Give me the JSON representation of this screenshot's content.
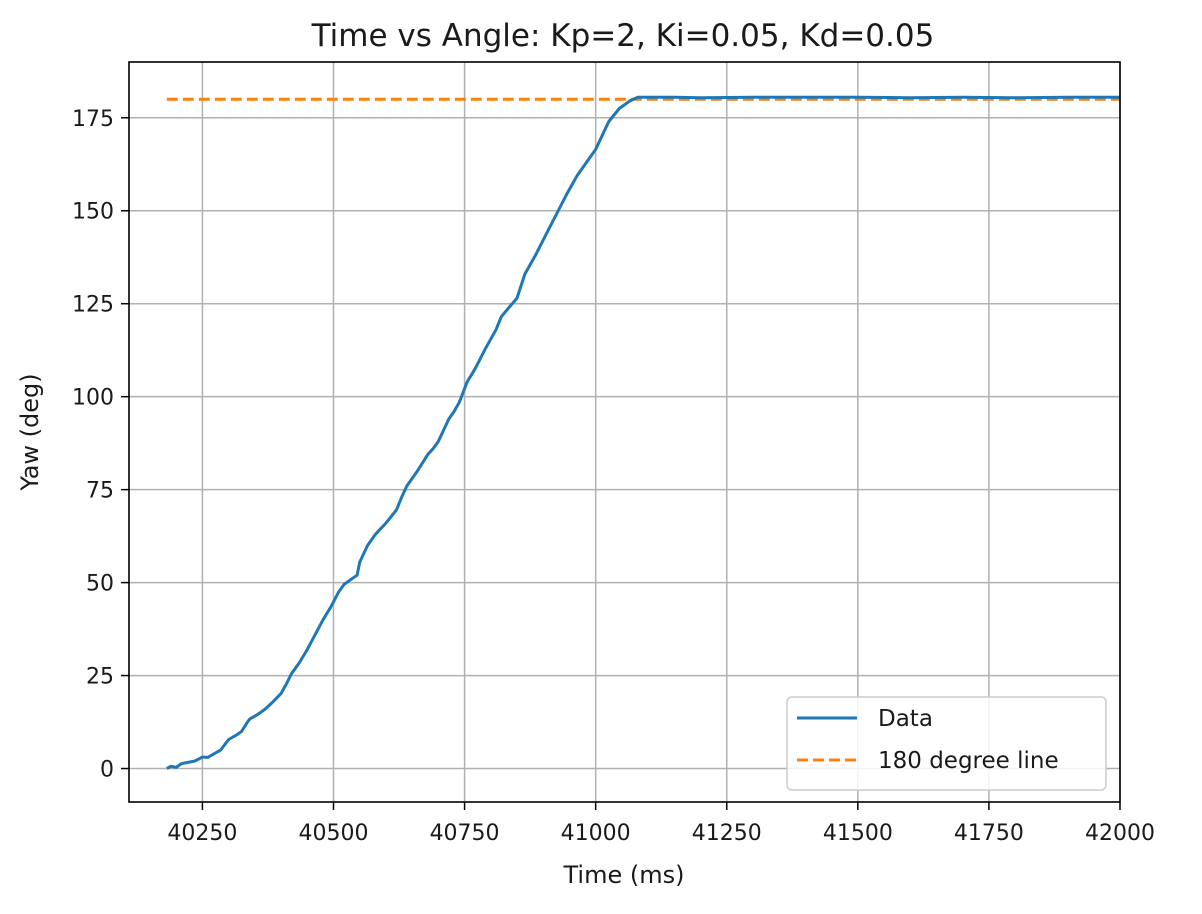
{
  "chart_data": {
    "type": "line",
    "title": "Time vs Angle: Kp=2, Ki=0.05, Kd=0.05",
    "xlabel": "Time (ms)",
    "ylabel": "Yaw (deg)",
    "xlim": [
      40110,
      42000
    ],
    "ylim": [
      -9,
      190
    ],
    "xticks": [
      40250,
      40500,
      40750,
      41000,
      41250,
      41500,
      41750,
      42000
    ],
    "yticks": [
      0,
      25,
      50,
      75,
      100,
      125,
      150,
      175
    ],
    "grid": true,
    "legend_position": "lower right",
    "series": [
      {
        "name": "Data",
        "color": "#1f77b4",
        "style": "solid",
        "x": [
          40182,
          40190,
          40200,
          40210,
          40220,
          40235,
          40245,
          40250,
          40260,
          40270,
          40285,
          40300,
          40315,
          40325,
          40335,
          40340,
          40355,
          40370,
          40385,
          40400,
          40410,
          40420,
          40435,
          40450,
          40465,
          40480,
          40495,
          40510,
          40520,
          40530,
          40545,
          40550,
          40555,
          40565,
          40580,
          40600,
          40620,
          40630,
          40640,
          40660,
          40680,
          40690,
          40700,
          40720,
          40730,
          40740,
          40755,
          40770,
          40790,
          40810,
          40820,
          40835,
          40850,
          40865,
          40885,
          40905,
          40925,
          40945,
          40965,
          40985,
          41000,
          41010,
          41025,
          41045,
          41065,
          41080,
          41100,
          41150,
          41200,
          41300,
          41400,
          41500,
          41600,
          41700,
          41800,
          41900,
          42000
        ],
        "y": [
          0,
          0.6,
          0.3,
          1.3,
          1.6,
          2.0,
          2.7,
          3.1,
          3.0,
          3.8,
          5.0,
          7.8,
          9.0,
          10.0,
          12.3,
          13.3,
          14.5,
          16.0,
          18.0,
          20.2,
          22.7,
          25.5,
          28.5,
          32.0,
          36.0,
          40.0,
          43.5,
          47.5,
          49.5,
          50.5,
          52.0,
          55.5,
          57.0,
          60.0,
          63.0,
          66.0,
          69.5,
          73.0,
          76.0,
          80.0,
          84.5,
          86.0,
          88.0,
          94.0,
          96.0,
          98.5,
          104.0,
          107.5,
          113.0,
          118.0,
          121.5,
          124.0,
          126.5,
          133.0,
          138.0,
          143.5,
          149.0,
          154.5,
          159.5,
          163.5,
          166.5,
          169.5,
          174.0,
          177.5,
          179.5,
          180.5,
          180.5,
          180.5,
          180.4,
          180.5,
          180.5,
          180.5,
          180.4,
          180.5,
          180.4,
          180.5,
          180.5
        ]
      },
      {
        "name": "180 degree line",
        "color": "#ff7f0e",
        "style": "dashed",
        "x": [
          40182,
          42000
        ],
        "y": [
          180,
          180
        ]
      }
    ]
  }
}
